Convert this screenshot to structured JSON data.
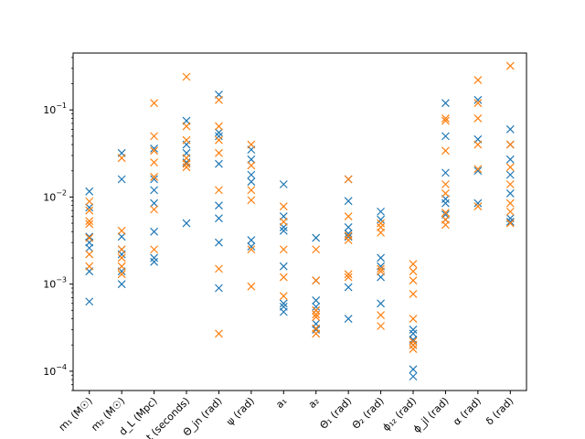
{
  "chart_data": {
    "type": "scatter",
    "marker": "x",
    "yscale": "log",
    "ylim": [
      6e-05,
      0.45
    ],
    "yticks": [
      {
        "value": 0.0001,
        "base": "10",
        "exp": "−4"
      },
      {
        "value": 0.001,
        "base": "10",
        "exp": "−3"
      },
      {
        "value": 0.01,
        "base": "10",
        "exp": "−2"
      },
      {
        "value": 0.1,
        "base": "10",
        "exp": "−1"
      }
    ],
    "categories": [
      "m₁ (M☉)",
      "m₂ (M☉)",
      "d_L (Mpc)",
      "t (seconds)",
      "Θ_jn (rad)",
      "ψ (rad)",
      "a₁",
      "a₂",
      "Θ₁ (rad)",
      "Θ₂ (rad)",
      "ϕ₁₂ (rad)",
      "ϕ_jl (rad)",
      "α (rad)",
      "δ (rad)"
    ],
    "series": [
      {
        "color": "#1f77b4",
        "values": [
          [
            0.0116,
            0.0076,
            0.0035,
            0.003,
            0.0026,
            0.0014,
            0.00063
          ],
          [
            0.032,
            0.016,
            0.0035,
            0.0025,
            0.0022,
            0.0014,
            0.001
          ],
          [
            0.036,
            0.016,
            0.012,
            0.0085,
            0.004,
            0.002,
            0.0018
          ],
          [
            0.075,
            0.04,
            0.032,
            0.025,
            0.005
          ],
          [
            0.15,
            0.055,
            0.05,
            0.024,
            0.008,
            0.0057,
            0.003,
            0.0009
          ],
          [
            0.035,
            0.027,
            0.018,
            0.015,
            0.0032,
            0.0027
          ],
          [
            0.014,
            0.006,
            0.0045,
            0.0041,
            0.0016,
            0.0006,
            0.00055,
            0.00048
          ],
          [
            0.0034,
            0.0011,
            0.00065,
            0.00055,
            0.0005,
            0.00035,
            0.0003
          ],
          [
            0.016,
            0.009,
            0.0045,
            0.0038,
            0.0035,
            0.00092,
            0.0004
          ],
          [
            0.0068,
            0.0055,
            0.002,
            0.0016,
            0.0012,
            0.0006
          ],
          [
            0.0003,
            0.00027,
            0.00023,
            0.0002,
            0.000105,
            8.7e-05
          ],
          [
            0.12,
            0.05,
            0.019,
            0.0095,
            0.0085,
            0.0063,
            0.0055
          ],
          [
            0.13,
            0.046,
            0.02,
            0.0085
          ],
          [
            0.06,
            0.04,
            0.027,
            0.018,
            0.011,
            0.0057,
            0.0052
          ]
        ]
      },
      {
        "color": "#ff7f0e",
        "values": [
          [
            0.0089,
            0.007,
            0.0053,
            0.0049,
            0.0034,
            0.0022,
            0.0016
          ],
          [
            0.028,
            0.0041,
            0.0025,
            0.002,
            0.0016,
            0.0013
          ],
          [
            0.12,
            0.05,
            0.034,
            0.025,
            0.017,
            0.0072,
            0.0025
          ],
          [
            0.24,
            0.065,
            0.045,
            0.028,
            0.024,
            0.022
          ],
          [
            0.13,
            0.065,
            0.045,
            0.032,
            0.012,
            0.0015,
            0.00027
          ],
          [
            0.04,
            0.023,
            0.012,
            0.0092,
            0.0025,
            0.00094
          ],
          [
            0.0078,
            0.0052,
            0.0025,
            0.0012,
            0.00073
          ],
          [
            0.0025,
            0.0011,
            0.0005,
            0.00045,
            0.00042,
            0.00031,
            0.00027
          ],
          [
            0.016,
            0.006,
            0.0036,
            0.0032,
            0.0013,
            0.0012
          ],
          [
            0.005,
            0.0045,
            0.0039,
            0.0015,
            0.0014,
            0.00044,
            0.00033
          ],
          [
            0.0017,
            0.0014,
            0.0011,
            0.00077,
            0.0004,
            0.00022,
            0.0002,
            0.00018
          ],
          [
            0.08,
            0.075,
            0.034,
            0.014,
            0.011,
            0.0066,
            0.0055,
            0.0048
          ],
          [
            0.22,
            0.12,
            0.08,
            0.04,
            0.021,
            0.0078
          ],
          [
            0.32,
            0.04,
            0.022,
            0.014,
            0.0085,
            0.0068,
            0.005
          ]
        ]
      }
    ]
  }
}
